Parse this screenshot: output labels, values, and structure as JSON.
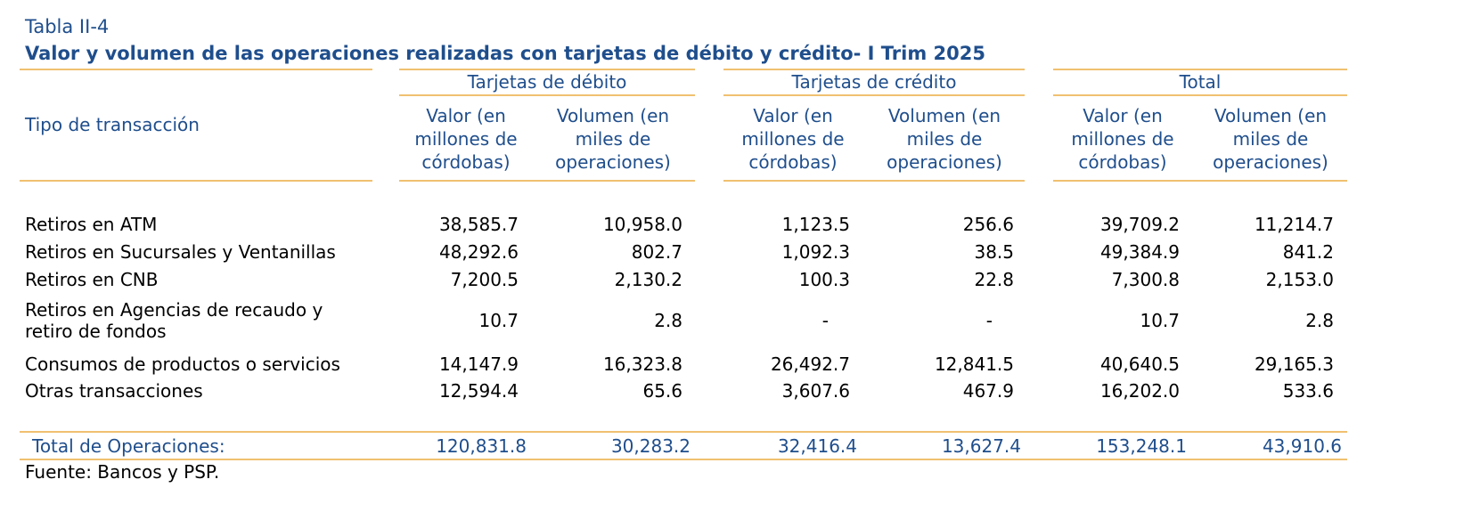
{
  "table_label": "Tabla II-4",
  "title": "Valor y volumen de las operaciones realizadas con tarjetas de débito y crédito- I Trim 2025",
  "row_header": "Tipo de transacción",
  "groups": [
    {
      "label": "Tarjetas de débito"
    },
    {
      "label": "Tarjetas de crédito"
    },
    {
      "label": "Total"
    }
  ],
  "subheaders": {
    "valor": "Valor (en millones de córdobas)",
    "volumen": "Volumen (en miles de operaciones)"
  },
  "rows": [
    {
      "label": "Retiros en ATM",
      "values": [
        "38,585.7",
        "10,958.0",
        "1,123.5",
        "256.6",
        "39,709.2",
        "11,214.7"
      ]
    },
    {
      "label": "Retiros en Sucursales y Ventanillas",
      "values": [
        "48,292.6",
        "802.7",
        "1,092.3",
        "38.5",
        "49,384.9",
        "841.2"
      ]
    },
    {
      "label": "Retiros en CNB",
      "values": [
        "7,200.5",
        "2,130.2",
        "100.3",
        "22.8",
        "7,300.8",
        "2,153.0"
      ]
    },
    {
      "label": "Retiros en Agencias de recaudo y retiro de fondos",
      "values": [
        "10.7",
        "2.8",
        "-",
        "-",
        "10.7",
        "2.8"
      ]
    },
    {
      "label": "Consumos de productos o servicios",
      "values": [
        "14,147.9",
        "16,323.8",
        "26,492.7",
        "12,841.5",
        "40,640.5",
        "29,165.3"
      ]
    },
    {
      "label": "Otras transacciones",
      "values": [
        "12,594.4",
        "65.6",
        "3,607.6",
        "467.9",
        "16,202.0",
        "533.6"
      ]
    }
  ],
  "total": {
    "label": "Total de Operaciones:",
    "values": [
      "120,831.8",
      "30,283.2",
      "32,416.4",
      "13,627.4",
      "153,248.1",
      "43,910.6"
    ]
  },
  "source": "Fuente: Bancos y PSP.",
  "colors": {
    "title": "#1f4e8c",
    "rule": "#f0c070"
  }
}
